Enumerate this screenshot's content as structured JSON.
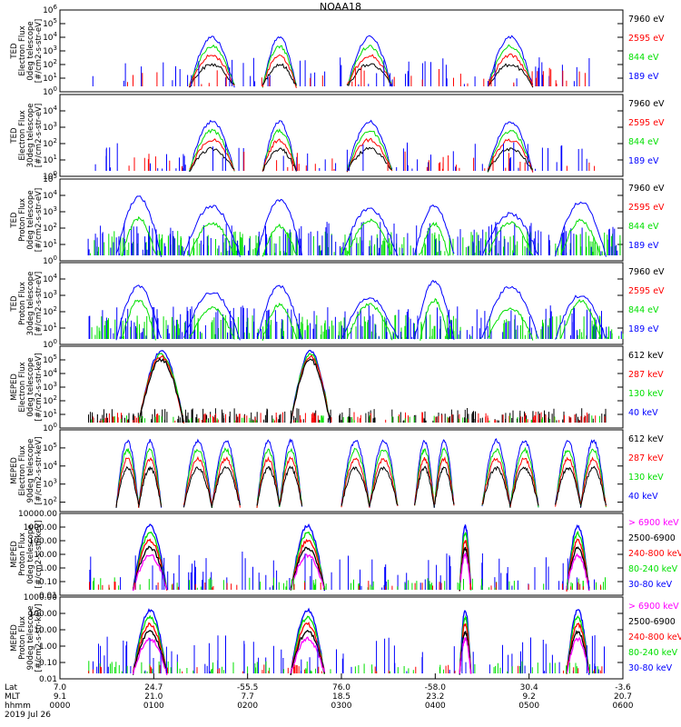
{
  "title": "NOAA18",
  "colors": {
    "black": "#000000",
    "red": "#ff0000",
    "green": "#00e000",
    "blue": "#0000ff",
    "magenta": "#ff00ff"
  },
  "chart_data": [
    {
      "type": "line",
      "ylabel": [
        "TED",
        "Electron Flux",
        "0deg telescope",
        "[#/cm2-s-str-eV]"
      ],
      "yscale": "log",
      "ylim": [
        1,
        1000000
      ],
      "ticks": [
        {
          "v": 1,
          "t": "10^0"
        },
        {
          "v": 10,
          "t": "10^1"
        },
        {
          "v": 100,
          "t": "10^2"
        },
        {
          "v": 1000,
          "t": "10^3"
        },
        {
          "v": 10000,
          "t": "10^4"
        },
        {
          "v": 100000,
          "t": "10^5"
        },
        {
          "v": 1000000,
          "t": "10^6"
        }
      ],
      "legend": [
        {
          "label": "7960 eV",
          "color": "black"
        },
        {
          "label": "2595 eV",
          "color": "red"
        },
        {
          "label": "844 eV",
          "color": "green"
        },
        {
          "label": "189 eV",
          "color": "blue"
        }
      ]
    },
    {
      "type": "line",
      "ylabel": [
        "TED",
        "Electron Flux",
        "30deg telescope",
        "[#/cm2-s-str-eV]"
      ],
      "yscale": "log",
      "ylim": [
        1,
        100000
      ],
      "ticks": [
        {
          "v": 1,
          "t": "10^0"
        },
        {
          "v": 10,
          "t": "10^1"
        },
        {
          "v": 100,
          "t": "10^2"
        },
        {
          "v": 1000,
          "t": "10^3"
        },
        {
          "v": 10000,
          "t": "10^4"
        }
      ],
      "legend": [
        {
          "label": "7960 eV",
          "color": "black"
        },
        {
          "label": "2595 eV",
          "color": "red"
        },
        {
          "label": "844 eV",
          "color": "green"
        },
        {
          "label": "189 eV",
          "color": "blue"
        }
      ]
    },
    {
      "type": "line",
      "ylabel": [
        "TED",
        "Proton Flux",
        "0deg telescope",
        "[#/cm2-s-str-eV]"
      ],
      "yscale": "log",
      "ylim": [
        1,
        100000
      ],
      "ticks": [
        {
          "v": 1,
          "t": "10^0"
        },
        {
          "v": 10,
          "t": "10^1"
        },
        {
          "v": 100,
          "t": "10^2"
        },
        {
          "v": 1000,
          "t": "10^3"
        },
        {
          "v": 10000,
          "t": "10^4"
        },
        {
          "v": 100000,
          "t": "10^5"
        }
      ],
      "legend": [
        {
          "label": "7960 eV",
          "color": "black"
        },
        {
          "label": "2595 eV",
          "color": "red"
        },
        {
          "label": "844 eV",
          "color": "green"
        },
        {
          "label": "189 eV",
          "color": "blue"
        }
      ]
    },
    {
      "type": "line",
      "ylabel": [
        "TED",
        "Proton Flux",
        "30deg telescope",
        "[#/cm2-s-str-eV]"
      ],
      "yscale": "log",
      "ylim": [
        1,
        100000
      ],
      "ticks": [
        {
          "v": 1,
          "t": "10^0"
        },
        {
          "v": 10,
          "t": "10^1"
        },
        {
          "v": 100,
          "t": "10^2"
        },
        {
          "v": 1000,
          "t": "10^3"
        },
        {
          "v": 10000,
          "t": "10^4"
        }
      ],
      "legend": [
        {
          "label": "7960 eV",
          "color": "black"
        },
        {
          "label": "2595 eV",
          "color": "red"
        },
        {
          "label": "844 eV",
          "color": "green"
        },
        {
          "label": "189 eV",
          "color": "blue"
        }
      ]
    },
    {
      "type": "line",
      "ylabel": [
        "MEPED",
        "Electron Flux",
        "0deg telescope",
        "[#/cm2-s-str-keV]"
      ],
      "yscale": "log",
      "ylim": [
        1,
        1000000
      ],
      "ticks": [
        {
          "v": 1,
          "t": "10^0"
        },
        {
          "v": 10,
          "t": "10^1"
        },
        {
          "v": 100,
          "t": "10^2"
        },
        {
          "v": 1000,
          "t": "10^3"
        },
        {
          "v": 10000,
          "t": "10^4"
        },
        {
          "v": 100000,
          "t": "10^5"
        }
      ],
      "legend": [
        {
          "label": "612 keV",
          "color": "black"
        },
        {
          "label": "287 keV",
          "color": "red"
        },
        {
          "label": "130 keV",
          "color": "green"
        },
        {
          "label": "40 keV",
          "color": "blue"
        }
      ]
    },
    {
      "type": "line",
      "ylabel": [
        "MEPED",
        "Electron Flux",
        "90deg telescope",
        "[#/cm2-s-str-keV]"
      ],
      "yscale": "log",
      "ylim": [
        30,
        1000000
      ],
      "ticks": [
        {
          "v": 100,
          "t": "10^2"
        },
        {
          "v": 1000,
          "t": "10^3"
        },
        {
          "v": 10000,
          "t": "10^4"
        },
        {
          "v": 100000,
          "t": "10^5"
        }
      ],
      "legend": [
        {
          "label": "612 keV",
          "color": "black"
        },
        {
          "label": "287 keV",
          "color": "red"
        },
        {
          "label": "130 keV",
          "color": "green"
        },
        {
          "label": "40 keV",
          "color": "blue"
        }
      ]
    },
    {
      "type": "line",
      "ylabel": [
        "MEPED",
        "Proton Flux",
        "0deg telescope",
        "[#/cm2-s-str-keV]"
      ],
      "yscale": "log",
      "ylim": [
        0.01,
        10000
      ],
      "ticks": [
        {
          "v": 0.01,
          "t": "0.01"
        },
        {
          "v": 0.1,
          "t": "0.10"
        },
        {
          "v": 1,
          "t": "1.00"
        },
        {
          "v": 10,
          "t": "10.00"
        },
        {
          "v": 100,
          "t": "100.00"
        },
        {
          "v": 1000,
          "t": "1000.00"
        },
        {
          "v": 10000,
          "t": "10000.00"
        }
      ],
      "legend": [
        {
          "label": "> 6900 keV",
          "color": "magenta"
        },
        {
          "label": "2500-6900",
          "color": "black"
        },
        {
          "label": "240-800 keV",
          "color": "red"
        },
        {
          "label": "80-240 keV",
          "color": "green"
        },
        {
          "label": "30-80 keV",
          "color": "blue"
        }
      ]
    },
    {
      "type": "line",
      "ylabel": [
        "MEPED",
        "Proton Flux",
        "90deg telescope",
        "[#/cm2-s-str-keV]"
      ],
      "yscale": "log",
      "ylim": [
        0.01,
        1000
      ],
      "ticks": [
        {
          "v": 0.01,
          "t": "0.01"
        },
        {
          "v": 0.1,
          "t": "0.10"
        },
        {
          "v": 1,
          "t": "1.00"
        },
        {
          "v": 10,
          "t": "10.00"
        },
        {
          "v": 100,
          "t": "100.00"
        },
        {
          "v": 1000,
          "t": "1000.00"
        }
      ],
      "legend": [
        {
          "label": "> 6900 keV",
          "color": "magenta"
        },
        {
          "label": "2500-6900",
          "color": "black"
        },
        {
          "label": "240-800 keV",
          "color": "red"
        },
        {
          "label": "80-240 keV",
          "color": "green"
        },
        {
          "label": "30-80 keV",
          "color": "blue"
        }
      ]
    }
  ],
  "x_axis": {
    "row_labels": [
      "Lat",
      "MLT",
      "hhmm"
    ],
    "columns": [
      {
        "lat": "7.0",
        "mlt": "9.1",
        "hhmm": "0000"
      },
      {
        "lat": "24.7",
        "mlt": "21.0",
        "hhmm": "0100"
      },
      {
        "lat": "-55.5",
        "mlt": "7.7",
        "hhmm": "0200"
      },
      {
        "lat": "76.0",
        "mlt": "18.5",
        "hhmm": "0300"
      },
      {
        "lat": "-58.0",
        "mlt": "23.2",
        "hhmm": "0400"
      },
      {
        "lat": "30.4",
        "mlt": "9.2",
        "hhmm": "0500"
      },
      {
        "lat": "-3.6",
        "mlt": "20.7",
        "hhmm": "0600"
      }
    ],
    "date": "2019 Jul 26"
  }
}
